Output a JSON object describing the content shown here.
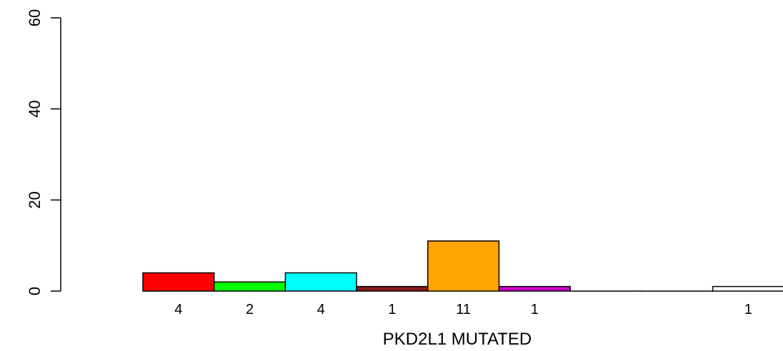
{
  "chart_data": {
    "type": "bar",
    "title": "",
    "xlabel": "PKD2L1 MUTATED",
    "ylabel": "",
    "ylim": [
      0,
      60
    ],
    "yticks": [
      0,
      20,
      40,
      60
    ],
    "grid": false,
    "legend": "none",
    "bars": [
      {
        "value": 4,
        "label": "4",
        "color": "#FF0000"
      },
      {
        "value": 2,
        "label": "2",
        "color": "#00FF00"
      },
      {
        "value": 4,
        "label": "4",
        "color": "#00FFFF"
      },
      {
        "value": 1,
        "label": "1",
        "color": "#8B1A1A"
      },
      {
        "value": 11,
        "label": "11",
        "color": "#FFA500"
      },
      {
        "value": 1,
        "label": "1",
        "color": "#CC00CC"
      },
      {
        "value": 0,
        "label": "",
        "color": "#FFFFFF"
      },
      {
        "value": 0,
        "label": "",
        "color": "#FFFFFF"
      },
      {
        "value": 1,
        "label": "1",
        "color": "#FFFFFF"
      }
    ]
  }
}
